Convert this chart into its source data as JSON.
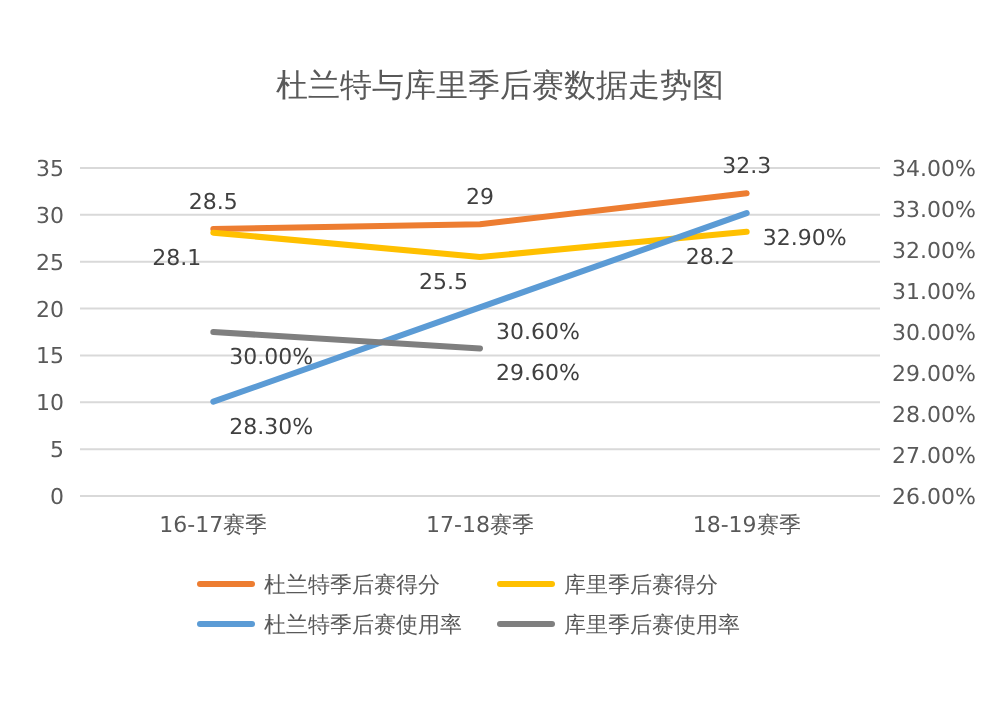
{
  "chart_data": {
    "type": "line",
    "title": "杜兰特与库里季后赛数据走势图",
    "categories": [
      "16-17赛季",
      "17-18赛季",
      "18-19赛季"
    ],
    "series": [
      {
        "name": "杜兰特季后赛得分",
        "color": "#ed7d31",
        "values": [
          28.5,
          29,
          32.3
        ],
        "value_labels": [
          "28.5",
          "29",
          "32.3"
        ]
      },
      {
        "name": "库里季后赛得分",
        "color": "#ffc000",
        "values": [
          28.1,
          25.5,
          28.2
        ],
        "value_labels": [
          "28.1",
          "25.5",
          "28.2"
        ]
      },
      {
        "name": "杜兰特季后赛使用率",
        "color": "#5b9bd5",
        "axis": "y2",
        "values": [
          28.3,
          30.6,
          32.9
        ],
        "value_labels": [
          "28.30%",
          "30.60%",
          "32.90%"
        ]
      },
      {
        "name": "库里季后赛使用率",
        "color": "#7f7f7f",
        "axis": "y2",
        "values": [
          30.0,
          29.6,
          null
        ],
        "value_labels": [
          "30.00%",
          "29.60%",
          null
        ]
      }
    ],
    "ylim": [
      0,
      35
    ],
    "yticks": [
      0,
      5,
      10,
      15,
      20,
      25,
      30,
      35
    ],
    "y2lim": [
      26,
      34
    ],
    "y2ticks": [
      {
        "value": 26,
        "label": "26.00%"
      },
      {
        "value": 27,
        "label": "27.00%"
      },
      {
        "value": 28,
        "label": "28.00%"
      },
      {
        "value": 29,
        "label": "29.00%"
      },
      {
        "value": 30,
        "label": "30.00%"
      },
      {
        "value": 31,
        "label": "31.00%"
      },
      {
        "value": 32,
        "label": "32.00%"
      },
      {
        "value": 33,
        "label": "33.00%"
      },
      {
        "value": 34,
        "label": "34.00%"
      }
    ],
    "grid": "y",
    "legend": "bottom",
    "marker": "none",
    "line_style": "solid"
  }
}
